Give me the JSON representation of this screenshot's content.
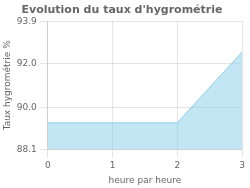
{
  "chart_data": {
    "type": "area",
    "title": "Evolution du taux d'hygrométrie",
    "xlabel": "heure par heure",
    "ylabel": "Taux hygrométrie %",
    "x": [
      0,
      2,
      3
    ],
    "values": [
      89.3,
      89.3,
      92.5
    ],
    "color": "#87ceeb",
    "xlim": [
      0,
      3
    ],
    "ylim": [
      88.1,
      93.9
    ],
    "xticks": [
      0,
      1,
      2,
      3
    ],
    "yticks": [
      88.1,
      {
        "value": 90,
        "label": "90.0"
      },
      {
        "value": 92,
        "label": "92.0"
      },
      93.9
    ],
    "grid": true
  }
}
